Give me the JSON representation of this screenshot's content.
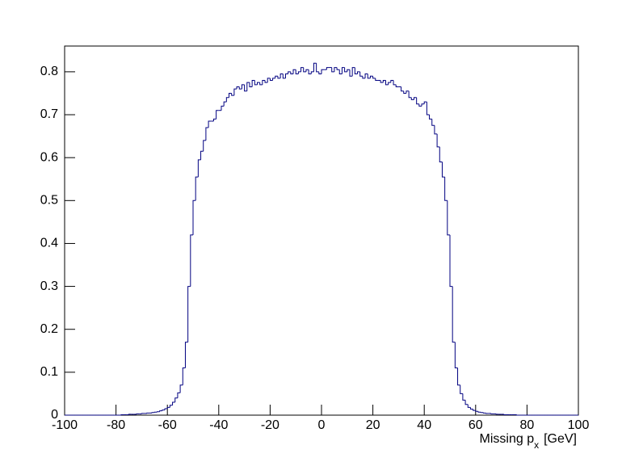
{
  "chart_data": {
    "type": "histogram",
    "xlabel": {
      "main": "Missing p",
      "sub": "x",
      "unit": "[GeV]"
    },
    "color": "#000080",
    "xlim": [
      -100,
      100
    ],
    "ylim": [
      0,
      0.86
    ],
    "xticks": [
      -100,
      -80,
      -60,
      -40,
      -20,
      0,
      20,
      40,
      60,
      80,
      100
    ],
    "yticks": [
      0,
      0.1,
      0.2,
      0.3,
      0.4,
      0.5,
      0.6,
      0.7,
      0.8
    ],
    "bins": [
      -100,
      -99,
      -98,
      -97,
      -96,
      -95,
      -94,
      -93,
      -92,
      -91,
      -90,
      -89,
      -88,
      -87,
      -86,
      -85,
      -84,
      -83,
      -82,
      -81,
      -80,
      -79,
      -78,
      -77,
      -76,
      -75,
      -74,
      -73,
      -72,
      -71,
      -70,
      -69,
      -68,
      -67,
      -66,
      -65,
      -64,
      -63,
      -62,
      -61,
      -60,
      -59,
      -58,
      -57,
      -56,
      -55,
      -54,
      -53,
      -52,
      -51,
      -50,
      -49,
      -48,
      -47,
      -46,
      -45,
      -44,
      -43,
      -42,
      -41,
      -40,
      -39,
      -38,
      -37,
      -36,
      -35,
      -34,
      -33,
      -32,
      -31,
      -30,
      -29,
      -28,
      -27,
      -26,
      -25,
      -24,
      -23,
      -22,
      -21,
      -20,
      -19,
      -18,
      -17,
      -16,
      -15,
      -14,
      -13,
      -12,
      -11,
      -10,
      -9,
      -8,
      -7,
      -6,
      -5,
      -4,
      -3,
      -2,
      -1,
      0,
      1,
      2,
      3,
      4,
      5,
      6,
      7,
      8,
      9,
      10,
      11,
      12,
      13,
      14,
      15,
      16,
      17,
      18,
      19,
      20,
      21,
      22,
      23,
      24,
      25,
      26,
      27,
      28,
      29,
      30,
      31,
      32,
      33,
      34,
      35,
      36,
      37,
      38,
      39,
      40,
      41,
      42,
      43,
      44,
      45,
      46,
      47,
      48,
      49,
      50,
      51,
      52,
      53,
      54,
      55,
      56,
      57,
      58,
      59,
      60,
      61,
      62,
      63,
      64,
      65,
      66,
      67,
      68,
      69,
      70,
      71,
      72,
      73,
      74,
      75,
      76,
      77,
      78,
      79,
      80,
      81,
      82,
      83,
      84,
      85,
      86,
      87,
      88,
      89,
      90,
      91,
      92,
      93,
      94,
      95,
      96,
      97,
      98,
      99,
      100
    ],
    "values": [
      0,
      0,
      0,
      0,
      0,
      0,
      0,
      0,
      0,
      0,
      0,
      0,
      0,
      0,
      0,
      0,
      0,
      0,
      0,
      0,
      0,
      0,
      0.001,
      0.001,
      0.001,
      0.002,
      0.002,
      0.002,
      0.003,
      0.003,
      0.004,
      0.004,
      0.005,
      0.005,
      0.006,
      0.007,
      0.008,
      0.01,
      0.012,
      0.015,
      0.018,
      0.023,
      0.03,
      0.04,
      0.052,
      0.07,
      0.11,
      0.17,
      0.3,
      0.42,
      0.5,
      0.555,
      0.595,
      0.615,
      0.64,
      0.67,
      0.685,
      0.685,
      0.69,
      0.71,
      0.71,
      0.72,
      0.73,
      0.74,
      0.75,
      0.745,
      0.76,
      0.765,
      0.76,
      0.77,
      0.755,
      0.775,
      0.765,
      0.78,
      0.77,
      0.775,
      0.77,
      0.78,
      0.775,
      0.785,
      0.78,
      0.785,
      0.79,
      0.785,
      0.795,
      0.785,
      0.795,
      0.8,
      0.795,
      0.805,
      0.795,
      0.8,
      0.81,
      0.8,
      0.805,
      0.795,
      0.8,
      0.82,
      0.8,
      0.795,
      0.805,
      0.805,
      0.81,
      0.81,
      0.8,
      0.81,
      0.805,
      0.795,
      0.81,
      0.8,
      0.805,
      0.79,
      0.81,
      0.795,
      0.8,
      0.79,
      0.785,
      0.795,
      0.785,
      0.79,
      0.785,
      0.78,
      0.78,
      0.775,
      0.78,
      0.77,
      0.775,
      0.78,
      0.77,
      0.765,
      0.765,
      0.755,
      0.75,
      0.755,
      0.74,
      0.735,
      0.74,
      0.725,
      0.72,
      0.725,
      0.73,
      0.7,
      0.69,
      0.675,
      0.655,
      0.625,
      0.59,
      0.555,
      0.5,
      0.42,
      0.3,
      0.17,
      0.11,
      0.07,
      0.05,
      0.035,
      0.025,
      0.018,
      0.014,
      0.011,
      0.009,
      0.007,
      0.006,
      0.005,
      0.004,
      0.004,
      0.003,
      0.003,
      0.002,
      0.002,
      0.002,
      0.001,
      0.001,
      0.001,
      0.001,
      0.001,
      0,
      0,
      0,
      0,
      0,
      0,
      0,
      0,
      0,
      0,
      0,
      0,
      0,
      0,
      0,
      0,
      0,
      0,
      0,
      0,
      0,
      0,
      0,
      0
    ]
  }
}
